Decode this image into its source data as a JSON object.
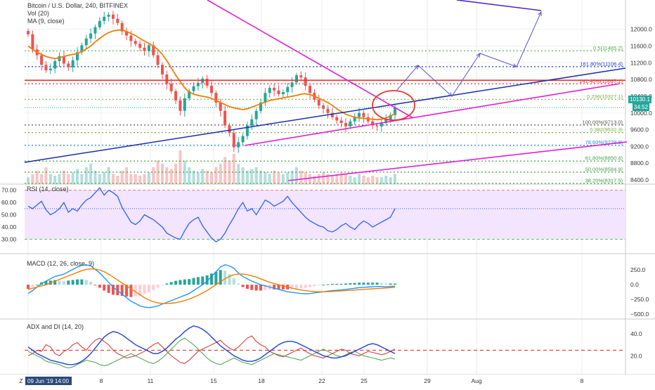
{
  "chart_data": {
    "type": "line",
    "title": "Bitcoin / U.S. Dollar, 240, BITFINEX",
    "legend": [
      "Vol (20)",
      "MA (9, close)"
    ],
    "price_axis": {
      "range": [
        8300,
        12700
      ],
      "ticks": [
        "12000.0",
        "11600.0",
        "11200.0",
        "10800.0",
        "10400.0",
        "10000.0",
        "9600.0",
        "9200.0",
        "8800.0",
        "8400.0"
      ],
      "tick_values": [
        12000,
        11600,
        11200,
        10800,
        10400,
        10000,
        9600,
        9200,
        8800,
        8400
      ]
    },
    "current_price": {
      "label": "10130.1",
      "value": 10130.1,
      "countdown": "34:52"
    },
    "x_ticks": [
      "Z",
      "09 Jun '19  14:00",
      "8",
      "11",
      "15",
      "18",
      "22",
      "25",
      "29",
      "Aug",
      "8"
    ],
    "x_tick_values": [
      -10,
      0,
      104,
      174,
      264,
      332,
      418,
      478,
      568,
      638,
      788
    ],
    "fib_levels": [
      {
        "label": "0.5(11485.2)",
        "value": 11485.2,
        "color": "#4caf50"
      },
      {
        "label": "161.80%(11106.4)",
        "value": 11106.4,
        "color": "#1e40d8"
      },
      {
        "label": "141.40%(10697.1)",
        "value": 10697.1,
        "color": "#e53935"
      },
      {
        "label": "0.236(10327.1)",
        "value": 10327.1,
        "color": "#7cb342"
      },
      {
        "label": "100.00%(9713.0)",
        "value": 9713.0,
        "color": "#555555"
      },
      {
        "label": "0.382(9532.3)",
        "value": 9532.3,
        "color": "#7cb342"
      },
      {
        "label": "78.60%(9229.8)",
        "value": 9229.8,
        "color": "#1e88e5"
      },
      {
        "label": "61.80%(8850.4)",
        "value": 8850.4,
        "color": "#43a047"
      },
      {
        "label": "50.00%(8584.9)",
        "value": 8584.9,
        "color": "#43a047"
      },
      {
        "label": "38.20%(8317.5)",
        "value": 8317.5,
        "color": "#43a047"
      }
    ],
    "price_series": [
      11880,
      11520,
      11380,
      11150,
      11020,
      11060,
      11240,
      11360,
      11180,
      11090,
      11260,
      11450,
      11620,
      11780,
      11900,
      12050,
      12200,
      12300,
      12350,
      12250,
      12150,
      11950,
      11850,
      11720,
      11650,
      11560,
      11480,
      11620,
      11380,
      11150,
      10920,
      10700,
      10520,
      10300,
      10050,
      10350,
      10520,
      10640,
      10720,
      10820,
      10650,
      10480,
      10250,
      10050,
      9700,
      9520,
      9180,
      9300,
      9450,
      9700,
      9850,
      10050,
      10250,
      10480,
      10600,
      10540,
      10450,
      10500,
      10620,
      10730,
      10900,
      10850,
      10650,
      10480,
      10320,
      10180,
      10100,
      10000,
      9900,
      9820,
      9760,
      9680,
      9800,
      9900,
      10000,
      9900,
      9800,
      9700,
      9680,
      9760,
      9850,
      9950,
      10130
    ],
    "ma_series": [
      11600,
      11520,
      11450,
      11400,
      11350,
      11320,
      11300,
      11320,
      11350,
      11380,
      11400,
      11420,
      11470,
      11530,
      11600,
      11700,
      11780,
      11860,
      11920,
      11960,
      11980,
      11980,
      11950,
      11900,
      11850,
      11780,
      11720,
      11660,
      11600,
      11520,
      11400,
      11250,
      11080,
      10900,
      10750,
      10600,
      10500,
      10450,
      10420,
      10400,
      10380,
      10350,
      10300,
      10250,
      10200,
      10150,
      10120,
      10100,
      10080,
      10100,
      10140,
      10180,
      10220,
      10260,
      10300,
      10320,
      10340,
      10360,
      10380,
      10400,
      10420,
      10450,
      10460,
      10440,
      10400,
      10350,
      10300,
      10250,
      10180,
      10100,
      10030,
      9970,
      9930,
      9900,
      9880,
      9870,
      9860,
      9850,
      9840,
      9850,
      9880,
      9930,
      9980
    ],
    "volume_bars": [
      0.2,
      0.3,
      0.4,
      0.3,
      0.5,
      0.3,
      0.25,
      0.3,
      0.4,
      0.3,
      0.35,
      0.45,
      0.3,
      0.5,
      0.6,
      0.4,
      0.3,
      0.35,
      0.5,
      0.3,
      0.25,
      0.4,
      0.5,
      0.3,
      0.3,
      0.25,
      0.3,
      0.35,
      0.5,
      0.7,
      0.6,
      0.5,
      0.45,
      0.6,
      1.0,
      0.7,
      0.5,
      0.4,
      0.35,
      0.45,
      0.4,
      0.35,
      0.5,
      0.6,
      0.8,
      0.7,
      0.9,
      0.6,
      0.5,
      0.4,
      0.45,
      0.5,
      0.4,
      0.35,
      0.3,
      0.4,
      0.35,
      0.3,
      0.35,
      0.4,
      0.5,
      0.4,
      0.35,
      0.3,
      0.25,
      0.3,
      0.35,
      0.3,
      0.25,
      0.3,
      0.35,
      0.3,
      0.25,
      0.2,
      0.3,
      0.25,
      0.2,
      0.25,
      0.2,
      0.2,
      0.25,
      0.2,
      0.3
    ],
    "rsi": {
      "label": "RSI (14, close)",
      "range": [
        20,
        75
      ],
      "ticks": [
        "70.00",
        "60.00",
        "50.00",
        "40.00",
        "30.00"
      ],
      "tick_values": [
        70,
        60,
        50,
        40,
        30
      ],
      "upper": 70,
      "lower": 30,
      "values": [
        57,
        55,
        58,
        61,
        54,
        50,
        52,
        55,
        60,
        52,
        55,
        53,
        58,
        62,
        64,
        68,
        72,
        66,
        70,
        68,
        65,
        56,
        50,
        44,
        42,
        45,
        50,
        48,
        46,
        43,
        40,
        35,
        33,
        31,
        30,
        37,
        43,
        46,
        48,
        41,
        36,
        31,
        28,
        30,
        35,
        42,
        48,
        55,
        60,
        53,
        55,
        50,
        56,
        62,
        60,
        57,
        59,
        61,
        65,
        60,
        56,
        52,
        48,
        45,
        43,
        41,
        40,
        37,
        36,
        38,
        41,
        43,
        40,
        38,
        42,
        45,
        43,
        40,
        42,
        44,
        46,
        48,
        55
      ]
    },
    "macd": {
      "label": "MACD (12, 26, close, 9)",
      "range": [
        -560,
        480
      ],
      "ticks": [
        "250.0",
        "0.0",
        "−250.0",
        "−500.0"
      ],
      "tick_values": [
        250,
        0,
        -250,
        -500
      ],
      "macd_values": [
        -150,
        -100,
        -40,
        20,
        60,
        100,
        140,
        160,
        180,
        220,
        260,
        300,
        330,
        340,
        320,
        260,
        200,
        120,
        40,
        -40,
        -100,
        -160,
        -220,
        -280,
        -320,
        -360,
        -380,
        -390,
        -380,
        -360,
        -330,
        -300,
        -270,
        -240,
        -210,
        -180,
        -150,
        -100,
        -50,
        0,
        60,
        140,
        220,
        300,
        340,
        320,
        280,
        200,
        140,
        100,
        60,
        30,
        0,
        -20,
        -40,
        -60,
        -80,
        -100,
        -120,
        -130,
        -140,
        -150,
        -155,
        -150,
        -140,
        -130,
        -120,
        -110,
        -100,
        -95,
        -90,
        -80,
        -70,
        -60,
        -50,
        -45,
        -40,
        -35,
        -30,
        -30,
        -35,
        -30,
        -25
      ],
      "signal_values": [
        -80,
        -60,
        -40,
        -20,
        0,
        30,
        60,
        90,
        120,
        150,
        180,
        210,
        240,
        260,
        270,
        265,
        250,
        220,
        180,
        130,
        80,
        30,
        -20,
        -70,
        -120,
        -170,
        -220,
        -260,
        -290,
        -310,
        -320,
        -320,
        -315,
        -305,
        -290,
        -270,
        -245,
        -215,
        -180,
        -140,
        -100,
        -50,
        0,
        50,
        100,
        140,
        170,
        180,
        180,
        170,
        150,
        130,
        100,
        70,
        40,
        20,
        0,
        -20,
        -40,
        -60,
        -75,
        -90,
        -100,
        -110,
        -115,
        -120,
        -120,
        -118,
        -115,
        -110,
        -105,
        -100,
        -95,
        -90,
        -85,
        -80,
        -75,
        -70,
        -65,
        -60,
        -55,
        -50,
        -45
      ]
    },
    "adx": {
      "label": "ADX and DI (14, 20)",
      "range": [
        3,
        52
      ],
      "ticks": [
        "40.0",
        "20.0"
      ],
      "tick_values": [
        40,
        20
      ],
      "threshold": 25,
      "adx_values": [
        28,
        25,
        22,
        20,
        18,
        16,
        15,
        14,
        13,
        12,
        12,
        13,
        15,
        18,
        22,
        27,
        32,
        37,
        40,
        42,
        41,
        39,
        36,
        33,
        30,
        28,
        26,
        24,
        22,
        22,
        24,
        27,
        31,
        35,
        38,
        42,
        45,
        47,
        46,
        44,
        41,
        37,
        33,
        29,
        26,
        23,
        20,
        18,
        16,
        15,
        15,
        16,
        18,
        21,
        24,
        27,
        30,
        32,
        33,
        33,
        32,
        30,
        28,
        26,
        24,
        22,
        20,
        19,
        18,
        18,
        19,
        20,
        22,
        24,
        26,
        28,
        30,
        31,
        30,
        28,
        26,
        24,
        22
      ],
      "plus_di_values": [
        20,
        22,
        25,
        24,
        30,
        28,
        22,
        20,
        24,
        26,
        30,
        32,
        28,
        25,
        30,
        34,
        36,
        33,
        30,
        25,
        22,
        20,
        18,
        19,
        20,
        22,
        24,
        27,
        30,
        32,
        28,
        24,
        20,
        17,
        14,
        13,
        16,
        20,
        24,
        26,
        28,
        30,
        32,
        34,
        30,
        27,
        25,
        28,
        32,
        36,
        38,
        33,
        30,
        28,
        24,
        22,
        20,
        19,
        21,
        23,
        25,
        27,
        24,
        22,
        20,
        19,
        18,
        20,
        22,
        24,
        26,
        25,
        22,
        21,
        20,
        22,
        24,
        23,
        22,
        21,
        22,
        24,
        26
      ],
      "minus_di_values": [
        24,
        22,
        20,
        18,
        15,
        14,
        13,
        12,
        10,
        9,
        10,
        12,
        14,
        16,
        15,
        14,
        12,
        11,
        12,
        14,
        16,
        18,
        20,
        22,
        20,
        18,
        16,
        14,
        13,
        15,
        18,
        22,
        26,
        30,
        34,
        36,
        33,
        30,
        26,
        22,
        18,
        15,
        13,
        12,
        14,
        16,
        18,
        16,
        14,
        13,
        12,
        14,
        16,
        18,
        20,
        22,
        21,
        20,
        19,
        18,
        17,
        16,
        18,
        20,
        22,
        24,
        26,
        24,
        22,
        20,
        19,
        21,
        23,
        24,
        22,
        20,
        19,
        18,
        17,
        16,
        17,
        18,
        17
      ]
    }
  },
  "colors": {
    "up": "#26a69a",
    "down": "#ef5350",
    "ma": "#f57c00",
    "trend_blue": "#1a2fa8",
    "trend_magenta": "#e020d0",
    "arrow": "#5555cc",
    "red_line": "#e53935",
    "rsi": "#2962ff",
    "rsi_fill": "#f3e5ff",
    "macd": "#2196f3",
    "signal": "#f57c00",
    "adx": "#1e40d8",
    "plus_di": "#d32f2f",
    "minus_di": "#43a047"
  }
}
